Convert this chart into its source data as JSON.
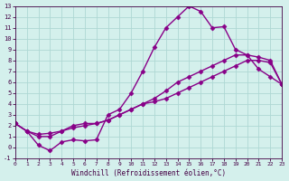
{
  "xlabel": "Windchill (Refroidissement éolien,°C)",
  "bg_color": "#d4f0ec",
  "grid_color": "#aed8d4",
  "line_color": "#880088",
  "marker": "D",
  "marker_size": 2.5,
  "line_width": 1.0,
  "xlim": [
    0,
    23
  ],
  "ylim": [
    -1,
    13
  ],
  "xticks": [
    0,
    1,
    2,
    3,
    4,
    5,
    6,
    7,
    8,
    9,
    10,
    11,
    12,
    13,
    14,
    15,
    16,
    17,
    18,
    19,
    20,
    21,
    22,
    23
  ],
  "yticks": [
    -1,
    0,
    1,
    2,
    3,
    4,
    5,
    6,
    7,
    8,
    9,
    10,
    11,
    12,
    13
  ],
  "series": [
    [
      2.2,
      1.5,
      0.2,
      -0.3,
      0.5,
      0.7,
      0.6,
      0.7,
      3.0,
      3.5,
      5.0,
      7.0,
      9.2,
      11.0,
      12.0,
      13.0,
      12.5,
      11.0,
      11.1,
      9.0,
      8.5,
      7.2,
      6.5,
      5.8
    ],
    [
      2.2,
      1.5,
      1.0,
      1.0,
      1.5,
      1.8,
      2.0,
      2.2,
      2.5,
      3.0,
      3.5,
      4.0,
      4.5,
      5.2,
      6.0,
      6.5,
      7.0,
      7.5,
      8.0,
      8.5,
      8.5,
      8.3,
      8.0,
      5.8
    ],
    [
      2.2,
      1.5,
      1.2,
      1.3,
      1.5,
      2.0,
      2.2,
      2.2,
      2.5,
      3.0,
      3.5,
      4.0,
      4.2,
      4.5,
      5.0,
      5.5,
      6.0,
      6.5,
      7.0,
      7.5,
      8.0,
      8.0,
      7.8,
      5.8
    ]
  ]
}
